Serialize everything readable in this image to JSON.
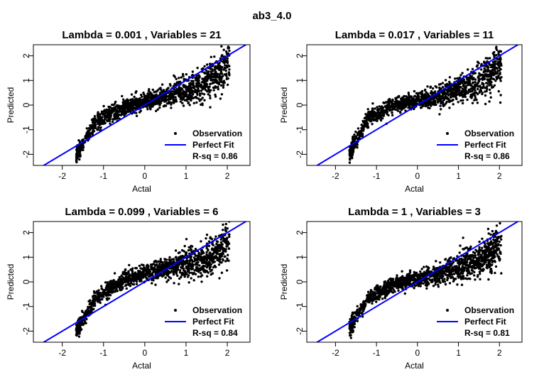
{
  "figure": {
    "title": "ab3_4.0"
  },
  "chart_data": [
    {
      "type": "scatter",
      "title": "Lambda =  0.001 , Variables =  21",
      "xlabel": "Actal",
      "ylabel": "Predicted",
      "xlim": [
        -2.7,
        2.55
      ],
      "ylim": [
        -2.45,
        2.45
      ],
      "xticks": [
        -2,
        -1,
        0,
        1,
        2
      ],
      "yticks": [
        -2,
        -1,
        0,
        1,
        2
      ],
      "perfect_fit": {
        "slope": 1,
        "intercept": 0,
        "color": "#0000ff"
      },
      "legend": {
        "position": "bottom-right",
        "observation": "Observation",
        "perfect_fit": "Perfect Fit",
        "r_squared": "R-sq = 0.86"
      },
      "series": [
        {
          "name": "Observation",
          "trend": [
            [
              -1.65,
              -2.0
            ],
            [
              -1.2,
              -0.7
            ],
            [
              -0.5,
              -0.1
            ],
            [
              0.5,
              0.35
            ],
            [
              1.5,
              0.9
            ],
            [
              2.0,
              1.65
            ]
          ]
        }
      ]
    },
    {
      "type": "scatter",
      "title": "Lambda =  0.017 , Variables =  11",
      "xlabel": "Actal",
      "ylabel": "Predicted",
      "xlim": [
        -2.7,
        2.55
      ],
      "ylim": [
        -2.45,
        2.45
      ],
      "xticks": [
        -2,
        -1,
        0,
        1,
        2
      ],
      "yticks": [
        -2,
        -1,
        0,
        1,
        2
      ],
      "perfect_fit": {
        "slope": 1,
        "intercept": 0,
        "color": "#0000ff"
      },
      "legend": {
        "position": "bottom-right",
        "observation": "Observation",
        "perfect_fit": "Perfect Fit",
        "r_squared": "R-sq = 0.86"
      },
      "series": [
        {
          "name": "Observation",
          "trend": [
            [
              -1.65,
              -1.95
            ],
            [
              -1.2,
              -0.55
            ],
            [
              -0.5,
              0.05
            ],
            [
              0.5,
              0.35
            ],
            [
              1.5,
              0.95
            ],
            [
              2.0,
              1.6
            ]
          ]
        }
      ]
    },
    {
      "type": "scatter",
      "title": "Lambda =  0.099 , Variables =  6",
      "xlabel": "Actal",
      "ylabel": "Predicted",
      "xlim": [
        -2.7,
        2.55
      ],
      "ylim": [
        -2.45,
        2.45
      ],
      "xticks": [
        -2,
        -1,
        0,
        1,
        2
      ],
      "yticks": [
        -2,
        -1,
        0,
        1,
        2
      ],
      "perfect_fit": {
        "slope": 1,
        "intercept": 0,
        "color": "#0000ff"
      },
      "legend": {
        "position": "bottom-right",
        "observation": "Observation",
        "perfect_fit": "Perfect Fit",
        "r_squared": "R-sq = 0.84"
      },
      "series": [
        {
          "name": "Observation",
          "trend": [
            [
              -1.65,
              -2.0
            ],
            [
              -1.2,
              -0.7
            ],
            [
              -0.5,
              0.1
            ],
            [
              0.5,
              0.55
            ],
            [
              1.5,
              0.9
            ],
            [
              2.0,
              1.6
            ]
          ]
        }
      ]
    },
    {
      "type": "scatter",
      "title": "Lambda =  1 , Variables =  3",
      "xlabel": "Actal",
      "ylabel": "Predicted",
      "xlim": [
        -2.7,
        2.55
      ],
      "ylim": [
        -2.45,
        2.45
      ],
      "xticks": [
        -2,
        -1,
        0,
        1,
        2
      ],
      "yticks": [
        -2,
        -1,
        0,
        1,
        2
      ],
      "perfect_fit": {
        "slope": 1,
        "intercept": 0,
        "color": "#0000ff"
      },
      "legend": {
        "position": "bottom-right",
        "observation": "Observation",
        "perfect_fit": "Perfect Fit",
        "r_squared": "R-sq = 0.81"
      },
      "series": [
        {
          "name": "Observation",
          "trend": [
            [
              -1.65,
              -1.85
            ],
            [
              -1.2,
              -0.65
            ],
            [
              -0.5,
              -0.05
            ],
            [
              0.5,
              0.3
            ],
            [
              1.5,
              0.9
            ],
            [
              2.0,
              1.4
            ]
          ]
        }
      ]
    }
  ]
}
